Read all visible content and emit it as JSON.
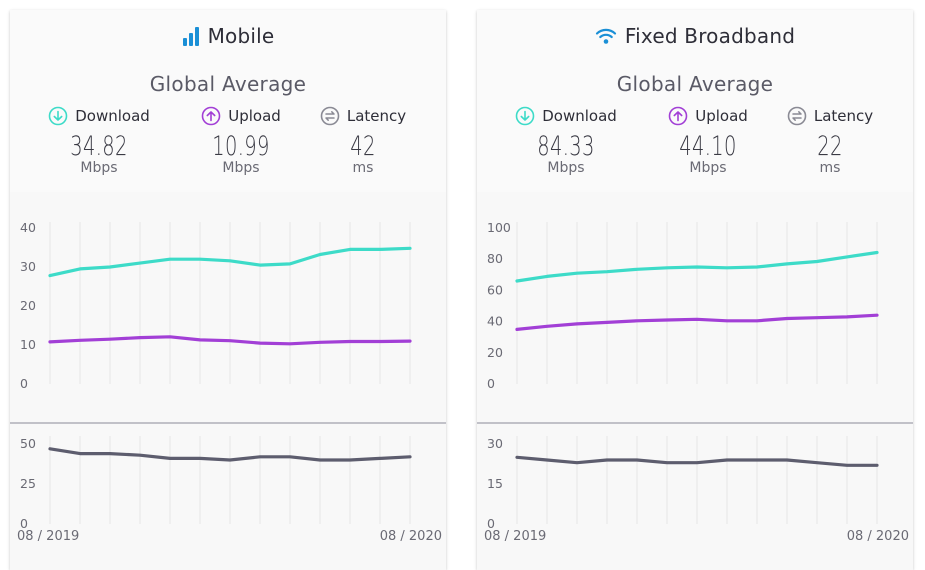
{
  "panels": [
    {
      "title": "Mobile",
      "icon": "signal-bars-icon",
      "subtitle": "Global Average",
      "metrics": [
        {
          "label": "Download",
          "value": "34.82",
          "unit": "Mbps",
          "icon": "download-arrow-icon",
          "color": "#3ddbc8"
        },
        {
          "label": "Upload",
          "value": "10.99",
          "unit": "Mbps",
          "icon": "upload-arrow-icon",
          "color": "#a23fd6"
        },
        {
          "label": "Latency",
          "value": "42",
          "unit": "ms",
          "icon": "latency-arrows-icon",
          "color": "#8a8a94"
        }
      ],
      "date_start": "08 / 2019",
      "date_end": "08 / 2020"
    },
    {
      "title": "Fixed Broadband",
      "icon": "wifi-icon",
      "subtitle": "Global Average",
      "metrics": [
        {
          "label": "Download",
          "value": "84.33",
          "unit": "Mbps",
          "icon": "download-arrow-icon",
          "color": "#3ddbc8"
        },
        {
          "label": "Upload",
          "value": "44.10",
          "unit": "Mbps",
          "icon": "upload-arrow-icon",
          "color": "#a23fd6"
        },
        {
          "label": "Latency",
          "value": "22",
          "unit": "ms",
          "icon": "latency-arrows-icon",
          "color": "#8a8a94"
        }
      ],
      "date_start": "08 / 2019",
      "date_end": "08 / 2020"
    }
  ],
  "colors": {
    "download": "#3ddbc8",
    "upload": "#a23fd6",
    "latency": "#5d5d6e",
    "accent": "#1a8fd6"
  },
  "chart_data": [
    {
      "type": "line",
      "x": [
        "08/2019",
        "09/2019",
        "10/2019",
        "11/2019",
        "12/2019",
        "01/2020",
        "02/2020",
        "03/2020",
        "04/2020",
        "05/2020",
        "06/2020",
        "07/2020",
        "08/2020"
      ],
      "speed": {
        "ylim": [
          0,
          40
        ],
        "yticks": [
          0,
          10,
          20,
          30,
          40
        ],
        "series": [
          {
            "name": "Download",
            "values": [
              27.8,
              29.5,
              30.0,
              31.0,
              32.0,
              32.0,
              31.6,
              30.5,
              30.8,
              33.2,
              34.5,
              34.5,
              34.8
            ]
          },
          {
            "name": "Upload",
            "values": [
              10.8,
              11.2,
              11.5,
              11.9,
              12.1,
              11.3,
              11.1,
              10.5,
              10.3,
              10.7,
              10.9,
              10.9,
              11.0
            ]
          }
        ]
      },
      "latency": {
        "ylim": [
          0,
          50
        ],
        "yticks": [
          0,
          25,
          50
        ],
        "series": [
          {
            "name": "Latency",
            "values": [
              47,
              44,
              44,
              43,
              41,
              41,
              40,
              42,
              42,
              40,
              40,
              41,
              42
            ]
          }
        ]
      },
      "grid": true
    },
    {
      "type": "line",
      "x": [
        "08/2019",
        "09/2019",
        "10/2019",
        "11/2019",
        "12/2019",
        "01/2020",
        "02/2020",
        "03/2020",
        "04/2020",
        "05/2020",
        "06/2020",
        "07/2020",
        "08/2020"
      ],
      "speed": {
        "ylim": [
          0,
          100
        ],
        "yticks": [
          0,
          20,
          40,
          60,
          80,
          100
        ],
        "series": [
          {
            "name": "Download",
            "values": [
              66,
              69,
              71,
              72,
              73.5,
              74.5,
              75,
              74.5,
              75,
              77,
              78.5,
              81.5,
              84.3
            ]
          },
          {
            "name": "Upload",
            "values": [
              35,
              37,
              38.5,
              39.5,
              40.5,
              41,
              41.5,
              40.5,
              40.5,
              42,
              42.5,
              43,
              44.1
            ]
          }
        ]
      },
      "latency": {
        "ylim": [
          0,
          30
        ],
        "yticks": [
          0,
          15,
          30
        ],
        "series": [
          {
            "name": "Latency",
            "values": [
              25,
              24,
              23,
              24,
              24,
              23,
              23,
              24,
              24,
              24,
              23,
              22,
              22
            ]
          }
        ]
      },
      "grid": true
    }
  ]
}
